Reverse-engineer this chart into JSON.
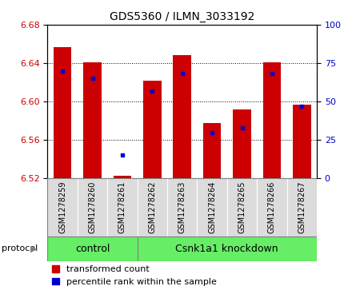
{
  "title": "GDS5360 / ILMN_3033192",
  "samples": [
    "GSM1278259",
    "GSM1278260",
    "GSM1278261",
    "GSM1278262",
    "GSM1278263",
    "GSM1278264",
    "GSM1278265",
    "GSM1278266",
    "GSM1278267"
  ],
  "red_values": [
    6.657,
    6.641,
    6.523,
    6.622,
    6.648,
    6.578,
    6.592,
    6.641,
    6.597
  ],
  "blue_values": [
    70,
    65,
    15,
    57,
    68,
    30,
    33,
    68,
    47
  ],
  "ylim_left": [
    6.52,
    6.68
  ],
  "ylim_right": [
    0,
    100
  ],
  "yticks_left": [
    6.52,
    6.56,
    6.6,
    6.64,
    6.68
  ],
  "yticks_right": [
    0,
    25,
    50,
    75,
    100
  ],
  "control_count": 3,
  "knockdown_count": 6,
  "group_labels": [
    "control",
    "Csnk1a1 knockdown"
  ],
  "protocol_label": "protocol",
  "bar_color": "#CC0000",
  "dot_color": "#0000CC",
  "base_value": 6.52,
  "bar_width": 0.6,
  "sample_cell_color": "#DCDCDC",
  "group_cell_color": "#66EE66",
  "title_fontsize": 10,
  "tick_fontsize": 8,
  "label_fontsize": 8,
  "sample_fontsize": 7,
  "group_fontsize": 9,
  "legend_fontsize": 8
}
